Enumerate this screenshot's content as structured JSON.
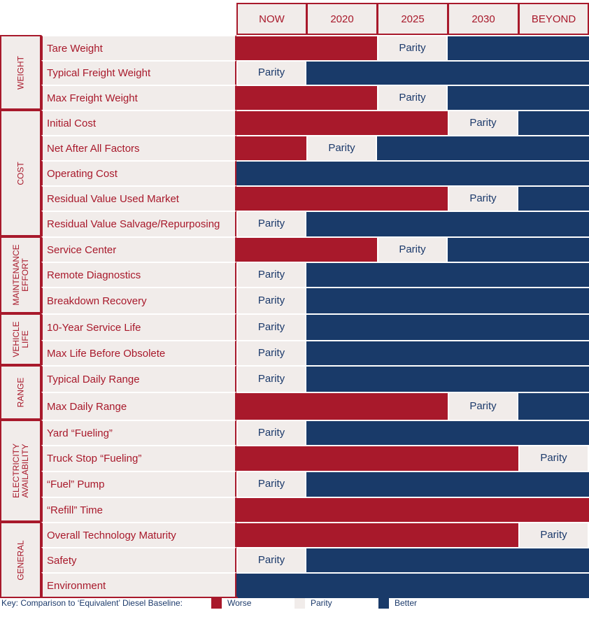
{
  "chart_data": {
    "type": "table",
    "columns": [
      "NOW",
      "2020",
      "2025",
      "2030",
      "BEYOND"
    ],
    "parity_label": "Parity",
    "colors": {
      "worse": "#a8192b",
      "parity": "#f1ecea",
      "better": "#193a69"
    },
    "groups": [
      {
        "name": "WEIGHT",
        "rows": [
          {
            "label": "Tare Weight",
            "values": [
              "worse",
              "worse",
              "parity",
              "better",
              "better"
            ]
          },
          {
            "label": "Typical Freight Weight",
            "values": [
              "parity",
              "better",
              "better",
              "better",
              "better"
            ]
          },
          {
            "label": "Max Freight Weight",
            "values": [
              "worse",
              "worse",
              "parity",
              "better",
              "better"
            ]
          }
        ]
      },
      {
        "name": "COST",
        "rows": [
          {
            "label": "Initial Cost",
            "values": [
              "worse",
              "worse",
              "worse",
              "parity",
              "better"
            ]
          },
          {
            "label": "Net After All Factors",
            "values": [
              "worse",
              "parity",
              "better",
              "better",
              "better"
            ]
          },
          {
            "label": "Operating Cost",
            "values": [
              "better",
              "better",
              "better",
              "better",
              "better"
            ]
          },
          {
            "label": "Residual Value Used Market",
            "values": [
              "worse",
              "worse",
              "worse",
              "parity",
              "better"
            ]
          },
          {
            "label": "Residual Value Salvage/Repurposing",
            "values": [
              "parity",
              "better",
              "better",
              "better",
              "better"
            ]
          }
        ]
      },
      {
        "name": "MAINTENANCE\nEFFORT",
        "rows": [
          {
            "label": "Service Center",
            "values": [
              "worse",
              "worse",
              "parity",
              "better",
              "better"
            ]
          },
          {
            "label": "Remote Diagnostics",
            "values": [
              "parity",
              "better",
              "better",
              "better",
              "better"
            ]
          },
          {
            "label": "Breakdown Recovery",
            "values": [
              "parity",
              "better",
              "better",
              "better",
              "better"
            ]
          }
        ]
      },
      {
        "name": "VEHICLE\nLIFE",
        "rows": [
          {
            "label": "10-Year Service Life",
            "values": [
              "parity",
              "better",
              "better",
              "better",
              "better"
            ]
          },
          {
            "label": "Max Life Before Obsolete",
            "values": [
              "parity",
              "better",
              "better",
              "better",
              "better"
            ]
          }
        ]
      },
      {
        "name": "RANGE",
        "rows": [
          {
            "label": "Typical Daily Range",
            "values": [
              "parity",
              "better",
              "better",
              "better",
              "better"
            ]
          },
          {
            "label": "Max Daily Range",
            "values": [
              "worse",
              "worse",
              "worse",
              "parity",
              "better"
            ]
          }
        ]
      },
      {
        "name": "ELECTRICITY\nAVAILABILITY",
        "rows": [
          {
            "label": "Yard “Fueling”",
            "values": [
              "parity",
              "better",
              "better",
              "better",
              "better"
            ]
          },
          {
            "label": "Truck Stop “Fueling”",
            "values": [
              "worse",
              "worse",
              "worse",
              "worse",
              "parity"
            ]
          },
          {
            "label": "“Fuel” Pump",
            "values": [
              "parity",
              "better",
              "better",
              "better",
              "better"
            ]
          },
          {
            "label": "“Refill” Time",
            "values": [
              "worse",
              "worse",
              "worse",
              "worse",
              "worse"
            ]
          }
        ]
      },
      {
        "name": "GENERAL",
        "rows": [
          {
            "label": "Overall Technology Maturity",
            "values": [
              "worse",
              "worse",
              "worse",
              "worse",
              "parity"
            ]
          },
          {
            "label": "Safety",
            "values": [
              "parity",
              "better",
              "better",
              "better",
              "better"
            ]
          },
          {
            "label": "Environment",
            "values": [
              "better",
              "better",
              "better",
              "better",
              "better"
            ]
          }
        ]
      }
    ],
    "key": {
      "title": "Key: Comparison to ‘Equivalent’ Diesel Baseline:",
      "worse": "Worse",
      "parity": "Parity",
      "better": "Better"
    }
  }
}
